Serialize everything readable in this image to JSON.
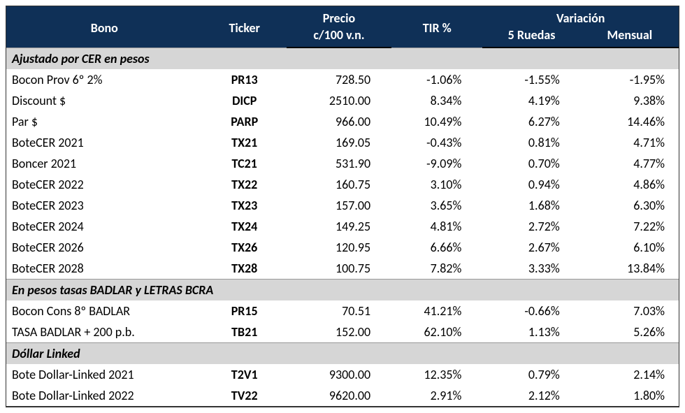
{
  "header": {
    "bono": "Bono",
    "ticker": "Ticker",
    "precio_top": "Precio",
    "precio_bottom": "c/100 v.n.",
    "tir": "TIR %",
    "variacion": "Variación",
    "var5": "5 Ruedas",
    "varm": "Mensual"
  },
  "colors": {
    "header_bg": "#0f3057",
    "header_fg": "#ffffff",
    "group_bg": "#d6d6d6",
    "row_bg": "#ffffff",
    "text": "#000000",
    "border": "#333333"
  },
  "fontsize": 18,
  "groups": [
    {
      "title": "Ajustado por CER en pesos",
      "rows": [
        {
          "bono": "Bocon Prov 6º 2%",
          "ticker": "PR13",
          "precio": "728.50",
          "tir": "-1.06%",
          "var5": "-1.55%",
          "varm": "-1.95%"
        },
        {
          "bono": "Discount $",
          "ticker": "DICP",
          "precio": "2510.00",
          "tir": "8.34%",
          "var5": "4.19%",
          "varm": "9.38%"
        },
        {
          "bono": "Par $",
          "ticker": "PARP",
          "precio": "966.00",
          "tir": "10.49%",
          "var5": "6.27%",
          "varm": "14.46%"
        },
        {
          "bono": "BoteCER 2021",
          "ticker": "TX21",
          "precio": "169.05",
          "tir": "-0.43%",
          "var5": "0.81%",
          "varm": "4.71%"
        },
        {
          "bono": "Boncer 2021",
          "ticker": "TC21",
          "precio": "531.90",
          "tir": "-9.09%",
          "var5": "0.70%",
          "varm": "4.77%"
        },
        {
          "bono": "BoteCER 2022",
          "ticker": "TX22",
          "precio": "160.75",
          "tir": "3.10%",
          "var5": "0.94%",
          "varm": "4.86%"
        },
        {
          "bono": "BoteCER 2023",
          "ticker": "TX23",
          "precio": "157.00",
          "tir": "3.65%",
          "var5": "1.68%",
          "varm": "6.30%"
        },
        {
          "bono": "BoteCER 2024",
          "ticker": "TX24",
          "precio": "149.25",
          "tir": "4.81%",
          "var5": "2.72%",
          "varm": "7.22%"
        },
        {
          "bono": "BoteCER 2026",
          "ticker": "TX26",
          "precio": "120.95",
          "tir": "6.66%",
          "var5": "2.67%",
          "varm": "6.10%"
        },
        {
          "bono": "BoteCER 2028",
          "ticker": "TX28",
          "precio": "100.75",
          "tir": "7.82%",
          "var5": "3.33%",
          "varm": "13.84%"
        }
      ]
    },
    {
      "title": "En pesos tasas BADLAR y LETRAS BCRA",
      "rows": [
        {
          "bono": "Bocon Cons 8º BADLAR",
          "ticker": "PR15",
          "precio": "70.51",
          "tir": "41.21%",
          "var5": "-0.66%",
          "varm": "7.03%"
        },
        {
          "bono": "TASA BADLAR + 200 p.b.",
          "ticker": "TB21",
          "precio": "152.00",
          "tir": "62.10%",
          "var5": "1.13%",
          "varm": "5.26%"
        }
      ]
    },
    {
      "title": "Dóllar Linked",
      "rows": [
        {
          "bono": "Bote Dollar-Linked 2021",
          "ticker": "T2V1",
          "precio": "9300.00",
          "tir": "12.35%",
          "var5": "0.79%",
          "varm": "2.14%"
        },
        {
          "bono": "Bote Dollar-Linked 2022",
          "ticker": "TV22",
          "precio": "9620.00",
          "tir": "2.91%",
          "var5": "2.12%",
          "varm": "1.80%"
        }
      ]
    }
  ]
}
